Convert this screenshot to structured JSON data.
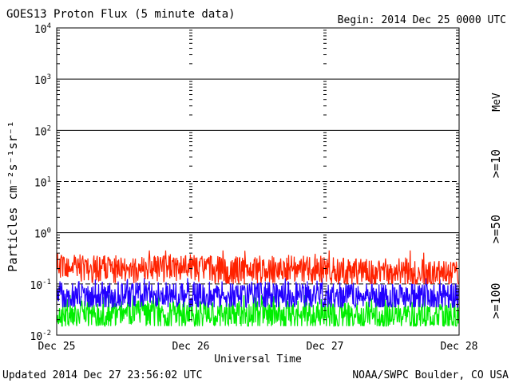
{
  "chart_data": {
    "type": "line",
    "title": "GOES13 Proton Flux (5 minute data)",
    "begin_label": "Begin: 2014 Dec 25 0000 UTC",
    "xlabel": "Universal Time",
    "ylabel": "Particles cm⁻²s⁻¹sr⁻¹",
    "y_scale": "log",
    "ylim": [
      0.01,
      10000
    ],
    "ytick_labels": [
      {
        "base": "10",
        "exp": "-2"
      },
      {
        "base": "10",
        "exp": "-1"
      },
      {
        "base": "10",
        "exp": "0"
      },
      {
        "base": "10",
        "exp": "1"
      },
      {
        "base": "10",
        "exp": "2"
      },
      {
        "base": "10",
        "exp": "3"
      },
      {
        "base": "10",
        "exp": "4"
      }
    ],
    "x_categories": [
      "Dec 25",
      "Dec 26",
      "Dec 27",
      "Dec 28"
    ],
    "grid": "horizontal lines at each decade; dashed at 10^1 and 10^-1",
    "legend_unit": "MeV",
    "series": [
      {
        "name": ">=10",
        "color": "#ff2200",
        "x": [
          0,
          0.25,
          0.5,
          0.75,
          1.0,
          1.25,
          1.5,
          1.75,
          2.0,
          2.25,
          2.5,
          2.75,
          3.0
        ],
        "y": [
          0.22,
          0.2,
          0.19,
          0.2,
          0.21,
          0.18,
          0.19,
          0.2,
          0.18,
          0.17,
          0.17,
          0.16,
          0.15
        ],
        "min": 0.1,
        "max": 0.45
      },
      {
        "name": ">=50",
        "color": "#2200ff",
        "x": [
          0,
          0.25,
          0.5,
          0.75,
          1.0,
          1.25,
          1.5,
          1.75,
          2.0,
          2.25,
          2.5,
          2.75,
          3.0
        ],
        "y": [
          0.06,
          0.06,
          0.06,
          0.06,
          0.06,
          0.06,
          0.06,
          0.06,
          0.06,
          0.055,
          0.055,
          0.055,
          0.055
        ],
        "min": 0.035,
        "max": 0.13
      },
      {
        "name": ">=100",
        "color": "#00ee00",
        "x": [
          0,
          0.25,
          0.5,
          0.75,
          1.0,
          1.25,
          1.5,
          1.75,
          2.0,
          2.25,
          2.5,
          2.75,
          3.0
        ],
        "y": [
          0.025,
          0.025,
          0.026,
          0.025,
          0.025,
          0.025,
          0.025,
          0.025,
          0.025,
          0.024,
          0.024,
          0.024,
          0.024
        ],
        "min": 0.015,
        "max": 0.06
      }
    ]
  },
  "footer": {
    "updated": "Updated 2014 Dec 27 23:56:02 UTC",
    "credit": "NOAA/SWPC Boulder, CO USA"
  }
}
